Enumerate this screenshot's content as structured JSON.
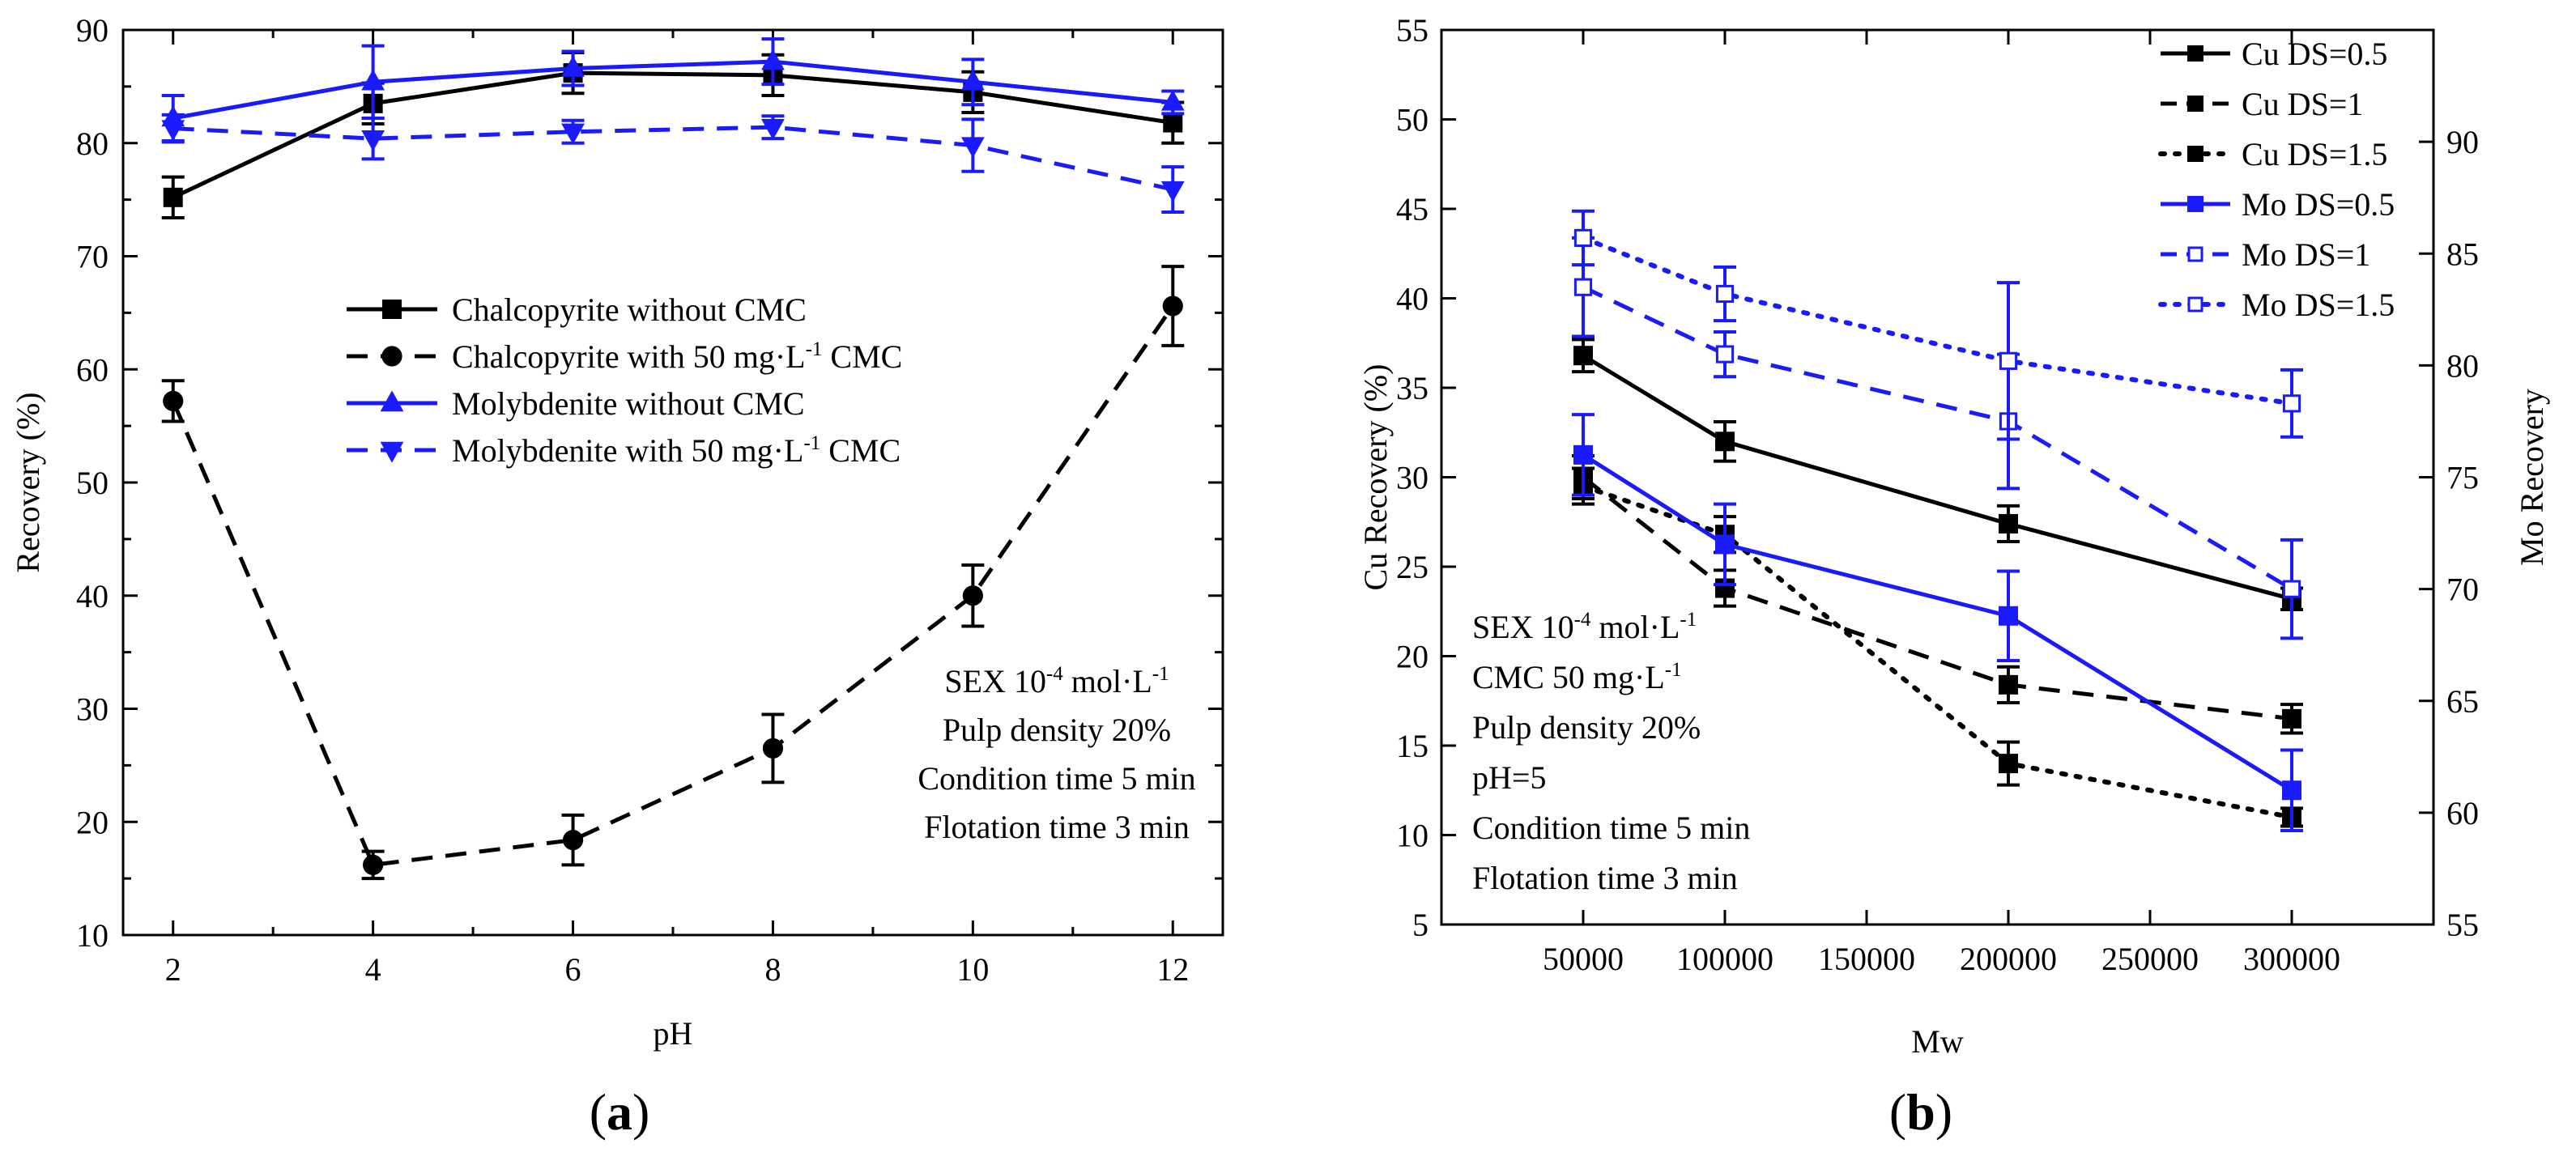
{
  "figure": {
    "panel_a_label": {
      "open": "(",
      "letter": "a",
      "close": ")"
    },
    "panel_b_label": {
      "open": "(",
      "letter": "b",
      "close": ")"
    }
  },
  "chart_data": [
    {
      "type": "line",
      "panel": "a",
      "xlabel": "pH",
      "ylabel": "Recovery (%)",
      "xlim": [
        1.5,
        12.5
      ],
      "ylim": [
        10,
        90
      ],
      "xticks": [
        2,
        4,
        6,
        8,
        10,
        12
      ],
      "yticks": [
        10,
        20,
        30,
        40,
        50,
        60,
        70,
        80,
        90
      ],
      "grid": false,
      "legend_position": "center-right",
      "x": [
        2,
        4,
        6,
        8,
        10,
        12
      ],
      "series": [
        {
          "name": "Chalcopyrite without CMC",
          "name_prefix": "Chalcopyrite without CMC",
          "name_suffix": "",
          "sup": "",
          "color": "#000000",
          "dash": "solid",
          "marker": "square",
          "values": [
            75.2,
            83.5,
            86.2,
            86.0,
            84.5,
            81.8
          ],
          "errors": [
            1.8,
            1.8,
            1.8,
            1.8,
            1.8,
            1.8
          ]
        },
        {
          "name": "Chalcopyrite with 50 mg·L-1 CMC",
          "name_prefix": "Chalcopyrite with 50 mg·L",
          "name_suffix": " CMC",
          "sup": "-1",
          "color": "#000000",
          "dash": "dash",
          "marker": "circle",
          "values": [
            57.2,
            16.2,
            18.4,
            26.5,
            40.0,
            65.6
          ],
          "errors": [
            1.8,
            1.2,
            2.2,
            3.0,
            2.7,
            3.5
          ]
        },
        {
          "name": "Molybdenite without CMC",
          "name_prefix": "Molybdenite without CMC",
          "name_suffix": "",
          "sup": "",
          "color": "#1a1aff",
          "dash": "solid",
          "marker": "triangle-up",
          "values": [
            82.2,
            85.4,
            86.6,
            87.2,
            85.4,
            83.6
          ],
          "errors": [
            2.0,
            3.2,
            1.5,
            2.0,
            2.0,
            1.0
          ]
        },
        {
          "name": "Molybdenite with 50 mg·L-1 CMC",
          "name_prefix": "Molybdenite with 50 mg·L",
          "name_suffix": " CMC",
          "sup": "-1",
          "color": "#1a1aff",
          "dash": "dash",
          "marker": "triangle-down",
          "values": [
            81.3,
            80.4,
            81.0,
            81.4,
            79.8,
            75.9
          ],
          "errors": [
            1.2,
            1.8,
            1.0,
            1.0,
            2.3,
            2.0
          ]
        }
      ],
      "annotation": [
        {
          "prefix": "SEX 10",
          "sup": "-4",
          "suffix": " mol·L",
          "sup2": "-1"
        },
        {
          "prefix": "Pulp density 20%",
          "sup": "",
          "suffix": "",
          "sup2": ""
        },
        {
          "prefix": "Condition time 5 min",
          "sup": "",
          "suffix": "",
          "sup2": ""
        },
        {
          "prefix": "Flotation time 3 min",
          "sup": "",
          "suffix": "",
          "sup2": ""
        }
      ]
    },
    {
      "type": "line",
      "panel": "b",
      "xlabel": "Mw",
      "ylabel": "Cu Recovery  (%)",
      "y2label": "Mo Recovery",
      "xlim": [
        0,
        350000
      ],
      "ylim": [
        5,
        55
      ],
      "y2lim": [
        55,
        95
      ],
      "xticks": [
        50000,
        100000,
        150000,
        200000,
        250000,
        300000
      ],
      "yticks": [
        5,
        10,
        15,
        20,
        25,
        30,
        35,
        40,
        45,
        50,
        55
      ],
      "y2ticks": [
        55,
        60,
        65,
        70,
        75,
        80,
        85,
        90
      ],
      "grid": false,
      "legend_position": "top-right",
      "x": [
        50000,
        100000,
        200000,
        300000
      ],
      "series": [
        {
          "name": "Cu DS=0.5",
          "axis": "left",
          "color": "#000000",
          "dash": "solid",
          "marker": "square",
          "values": [
            36.8,
            32.0,
            27.4,
            23.2
          ],
          "errors": [
            0.9,
            1.1,
            1.0,
            0.6
          ]
        },
        {
          "name": "Cu DS=1",
          "axis": "left",
          "color": "#000000",
          "dash": "dash",
          "marker": "square",
          "values": [
            30.0,
            23.8,
            18.4,
            16.5
          ],
          "errors": [
            1.2,
            1.0,
            1.0,
            0.8
          ]
        },
        {
          "name": "Cu DS=1.5",
          "axis": "left",
          "color": "#000000",
          "dash": "dot",
          "marker": "square",
          "values": [
            29.5,
            26.8,
            14.0,
            11.0
          ],
          "errors": [
            1.0,
            1.0,
            1.2,
            0.5
          ]
        },
        {
          "name": "Mo DS=0.5",
          "axis": "right",
          "color": "#1a1aff",
          "dash": "solid",
          "marker": "square",
          "values": [
            76.0,
            72.0,
            68.8,
            61.0
          ],
          "errors": [
            1.8,
            1.8,
            2.0,
            1.8
          ]
        },
        {
          "name": "Mo DS=1",
          "axis": "right",
          "color": "#1a1aff",
          "dash": "dash",
          "marker": "square-open",
          "values": [
            83.5,
            80.5,
            77.5,
            70.0
          ],
          "errors": [
            2.2,
            1.0,
            3.0,
            2.2
          ]
        },
        {
          "name": "Mo DS=1.5",
          "axis": "right",
          "color": "#1a1aff",
          "dash": "dot",
          "marker": "square-open",
          "values": [
            85.7,
            83.2,
            80.2,
            78.3
          ],
          "errors": [
            1.2,
            1.2,
            3.5,
            1.5
          ]
        }
      ],
      "annotation": [
        {
          "prefix": "SEX 10",
          "sup": "-4",
          "suffix": " mol·L",
          "sup2": "-1"
        },
        {
          "prefix": "CMC 50 mg·L",
          "sup": "-1",
          "suffix": "",
          "sup2": ""
        },
        {
          "prefix": "Pulp density 20%",
          "sup": "",
          "suffix": "",
          "sup2": ""
        },
        {
          "prefix": "pH=5",
          "sup": "",
          "suffix": "",
          "sup2": ""
        },
        {
          "prefix": "Condition time 5 min",
          "sup": "",
          "suffix": "",
          "sup2": ""
        },
        {
          "prefix": "Flotation time 3 min",
          "sup": "",
          "suffix": "",
          "sup2": ""
        }
      ]
    }
  ]
}
